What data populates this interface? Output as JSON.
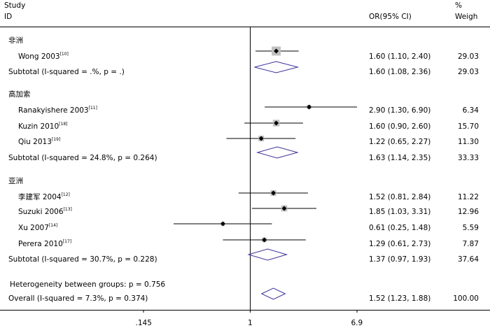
{
  "chart_data": {
    "type": "forest",
    "header": {
      "study": "Study",
      "id": "ID",
      "or": "OR(95% CI)",
      "percent": "%",
      "weight": "Weigh"
    },
    "x_scale": "log",
    "x_ticks": [
      {
        "value": 0.145,
        "label": ".145"
      },
      {
        "value": 1,
        "label": "1"
      },
      {
        "value": 6.9,
        "label": "6.9"
      }
    ],
    "null_line": 1,
    "colors": {
      "marker_box": "#c0c0c0",
      "diamond": "#3b3198",
      "line": "#000000"
    },
    "groups": [
      {
        "label": "非洲",
        "studies": [
          {
            "name": "Wong 2003",
            "ref": "[10]",
            "or": 1.6,
            "lo": 1.1,
            "hi": 2.4,
            "or_ci": "1.60 (1.10, 2.40)",
            "weight": "29.03"
          }
        ],
        "subtotal": {
          "label": "Subtotal (I-squared = .%, p = .)",
          "or": 1.6,
          "lo": 1.08,
          "hi": 2.36,
          "or_ci": "1.60 (1.08, 2.36)",
          "weight": "29.03"
        }
      },
      {
        "label": "高加索",
        "studies": [
          {
            "name": "Ranakyishere 2003",
            "ref": "[11]",
            "or": 2.9,
            "lo": 1.3,
            "hi": 6.9,
            "or_ci": "2.90 (1.30, 6.90)",
            "weight": "6.34"
          },
          {
            "name": "Kuzin 2010",
            "ref": "[18]",
            "or": 1.6,
            "lo": 0.9,
            "hi": 2.6,
            "or_ci": "1.60 (0.90, 2.60)",
            "weight": "15.70"
          },
          {
            "name": "Qiu 2013",
            "ref": "[19]",
            "or": 1.22,
            "lo": 0.65,
            "hi": 2.27,
            "or_ci": "1.22 (0.65, 2.27)",
            "weight": "11.30"
          }
        ],
        "subtotal": {
          "label": "Subtotal (I-squared = 24.8%, p = 0.264)",
          "or": 1.63,
          "lo": 1.14,
          "hi": 2.35,
          "or_ci": "1.63 (1.14, 2.35)",
          "weight": "33.33"
        }
      },
      {
        "label": "亚洲",
        "studies": [
          {
            "name": "李建军 2004",
            "ref": "[12]",
            "or": 1.52,
            "lo": 0.81,
            "hi": 2.84,
            "or_ci": "1.52 (0.81, 2.84)",
            "weight": "11.22"
          },
          {
            "name": "Suzuki 2006",
            "ref": "[13]",
            "or": 1.85,
            "lo": 1.03,
            "hi": 3.31,
            "or_ci": "1.85 (1.03, 3.31)",
            "weight": "12.96"
          },
          {
            "name": "Xu 2007",
            "ref": "[14]",
            "or": 0.61,
            "lo": 0.25,
            "hi": 1.48,
            "or_ci": "0.61 (0.25, 1.48)",
            "weight": "5.59"
          },
          {
            "name": "Perera 2010",
            "ref": "[17]",
            "or": 1.29,
            "lo": 0.61,
            "hi": 2.73,
            "or_ci": "1.29 (0.61, 2.73)",
            "weight": "7.87"
          }
        ],
        "subtotal": {
          "label": "Subtotal (I-squared = 30.7%, p = 0.228)",
          "or": 1.37,
          "lo": 0.97,
          "hi": 1.93,
          "or_ci": "1.37 (0.97, 1.93)",
          "weight": "37.64"
        }
      }
    ],
    "heterogeneity_between": "Heterogeneity between groups: p = 0.756",
    "overall": {
      "label": "Overall (I-squared = 7.3%, p = 0.374)",
      "or": 1.52,
      "lo": 1.23,
      "hi": 1.88,
      "or_ci": "1.52 (1.23, 1.88)",
      "weight": "100.00"
    }
  }
}
